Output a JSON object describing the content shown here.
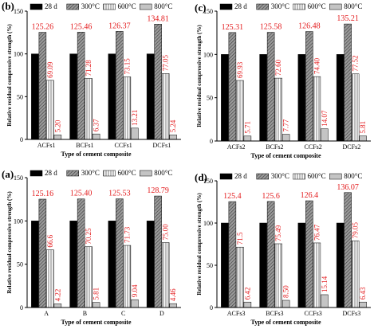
{
  "colors": {
    "bar_28d": "#000000",
    "bar_300": "#8f8f8f",
    "bar_600": "#ffffff",
    "bar_800": "#c4c4c4",
    "value_label": "#e31a1c",
    "axis": "#000000"
  },
  "chart_data": [
    {
      "panel_label": "(b)",
      "type": "bar",
      "categories": [
        "ACFs1",
        "BCFs1",
        "CCFs1",
        "DCFs1"
      ],
      "series": [
        {
          "name": "28 d",
          "values": [
            100,
            100,
            100,
            100
          ],
          "show_labels": false
        },
        {
          "name": "300°C",
          "values": [
            125.26,
            125.46,
            126.37,
            134.81
          ],
          "show_labels": true
        },
        {
          "name": "600°C",
          "values": [
            69.09,
            71.28,
            73.15,
            77.05
          ],
          "show_labels": true
        },
        {
          "name": "800°C",
          "values": [
            5.2,
            6.37,
            13.21,
            5.24
          ],
          "show_labels": true
        }
      ],
      "value_labels": [
        [
          null,
          null,
          null,
          null
        ],
        [
          "125.26",
          "125.46",
          "126.37",
          "134.81"
        ],
        [
          "69.09",
          "71.28",
          "73.15",
          "77.05"
        ],
        [
          "5.20",
          "6.37",
          "13.21",
          "5.24"
        ]
      ],
      "xlabel": "Type of cement composite",
      "ylabel": "Relative residual compressive strength (%)",
      "ylim": [
        0,
        150
      ],
      "yticks": [
        0,
        50,
        100,
        150
      ],
      "grid": false,
      "legend": "top"
    },
    {
      "panel_label": "(c)",
      "type": "bar",
      "categories": [
        "ACFs2",
        "BCFs2",
        "CCFs2",
        "DCFs2"
      ],
      "series": [
        {
          "name": "28 d",
          "values": [
            100,
            100,
            100,
            100
          ],
          "show_labels": false
        },
        {
          "name": "300°C",
          "values": [
            125.31,
            125.58,
            126.48,
            135.21
          ],
          "show_labels": true
        },
        {
          "name": "600°C",
          "values": [
            69.93,
            72.6,
            74.4,
            77.52
          ],
          "show_labels": true
        },
        {
          "name": "800°C",
          "values": [
            5.71,
            7.77,
            14.07,
            5.81
          ],
          "show_labels": true
        }
      ],
      "value_labels": [
        [
          null,
          null,
          null,
          null
        ],
        [
          "125.31",
          "125.58",
          "126.48",
          "135.21"
        ],
        [
          "69.93",
          "72.60",
          "74.40",
          "77.52"
        ],
        [
          "5.71",
          "7.77",
          "14.07",
          "5.81"
        ]
      ],
      "xlabel": "Type of cement composite",
      "ylabel": "Relative residual compressive strength (%)",
      "ylim": [
        0,
        150
      ],
      "yticks": [
        0,
        50,
        100,
        150
      ],
      "grid": false,
      "legend": "top"
    },
    {
      "panel_label": "(a)",
      "type": "bar",
      "categories": [
        "A",
        "B",
        "C",
        "D"
      ],
      "series": [
        {
          "name": "28 d",
          "values": [
            100,
            100,
            100,
            100
          ],
          "show_labels": false
        },
        {
          "name": "300°C",
          "values": [
            125.16,
            125.4,
            125.53,
            128.79
          ],
          "show_labels": true
        },
        {
          "name": "600°C",
          "values": [
            66.6,
            70.25,
            71.73,
            75.0
          ],
          "show_labels": true
        },
        {
          "name": "800°C",
          "values": [
            4.22,
            5.81,
            9.04,
            4.46
          ],
          "show_labels": true
        }
      ],
      "value_labels": [
        [
          null,
          null,
          null,
          null
        ],
        [
          "125.16",
          "125.40",
          "125.53",
          "128.79"
        ],
        [
          "66.6",
          "70.25",
          "71.73",
          "75.00"
        ],
        [
          "4.22",
          "5.81",
          "9.04",
          "4.46"
        ]
      ],
      "xlabel": "Type of cement composite",
      "ylabel": "Relative residual compressive strength (%)",
      "ylim": [
        0,
        150
      ],
      "yticks": [
        0,
        50,
        100,
        150
      ],
      "grid": false,
      "legend": "top"
    },
    {
      "panel_label": "(d)",
      "type": "bar",
      "categories": [
        "ACFs3",
        "BCFs3",
        "CCFs3",
        "DCFs3"
      ],
      "series": [
        {
          "name": "28 d",
          "values": [
            100,
            100,
            100,
            100
          ],
          "show_labels": false
        },
        {
          "name": "300°C",
          "values": [
            125.4,
            125.6,
            126.4,
            136.07
          ],
          "show_labels": true
        },
        {
          "name": "600°C",
          "values": [
            71.5,
            75.49,
            76.47,
            79.05
          ],
          "show_labels": true
        },
        {
          "name": "800°C",
          "values": [
            6.42,
            8.5,
            15.14,
            6.43
          ],
          "show_labels": true
        }
      ],
      "value_labels": [
        [
          null,
          null,
          null,
          null
        ],
        [
          "125.4",
          "125.6",
          "126.4",
          "136.07"
        ],
        [
          "71.5",
          "75.49",
          "76.47",
          "79.05"
        ],
        [
          "6.42",
          "8.50",
          "15.14",
          "6.43"
        ]
      ],
      "xlabel": "Type of cement composite",
      "ylabel": "Relative residual compressive strength (%)",
      "ylim": [
        0,
        150
      ],
      "yticks": [
        0,
        50,
        100,
        150
      ],
      "grid": false,
      "legend": "top"
    }
  ]
}
